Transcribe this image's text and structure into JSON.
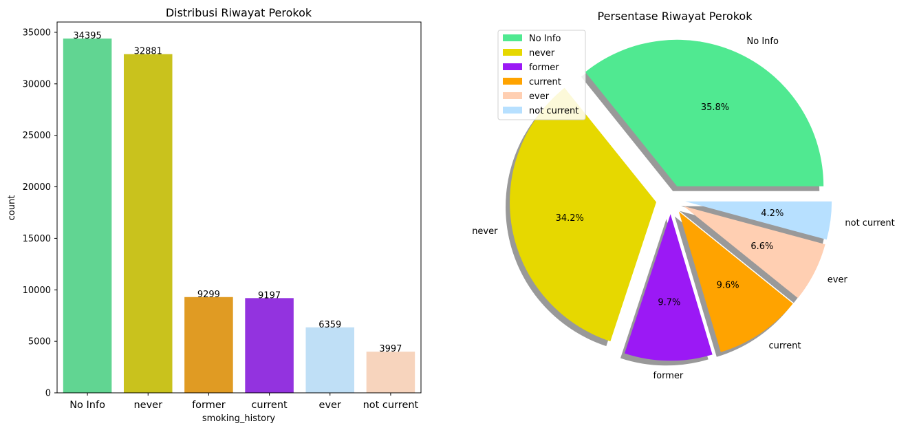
{
  "chart_data": [
    {
      "type": "bar",
      "title": "Distribusi Riwayat Perokok",
      "xlabel": "smoking_history",
      "ylabel": "count",
      "categories": [
        "No Info",
        "never",
        "former",
        "current",
        "ever",
        "not current"
      ],
      "values": [
        34395,
        32881,
        9299,
        9197,
        6359,
        3997
      ],
      "value_labels": [
        "34395",
        "32881",
        "9299",
        "9197",
        "6359",
        "3997"
      ],
      "colors": [
        "#61d592",
        "#c9c21d",
        "#e09b23",
        "#9333df",
        "#bfdff6",
        "#f7d4bd"
      ],
      "ylim": [
        0,
        36000
      ],
      "yticks": [
        0,
        5000,
        10000,
        15000,
        20000,
        25000,
        30000,
        35000
      ],
      "ytick_labels": [
        "0",
        "5000",
        "10000",
        "15000",
        "20000",
        "25000",
        "30000",
        "35000"
      ],
      "grid": false
    },
    {
      "type": "pie",
      "title": "Persentase Riwayat Perokok",
      "labels": [
        "No Info",
        "never",
        "former",
        "current",
        "ever",
        "not current"
      ],
      "values": [
        35.8,
        34.2,
        9.7,
        9.6,
        6.6,
        4.2
      ],
      "pct_labels": [
        "35.8%",
        "34.2%",
        "9.7%",
        "9.6%",
        "6.6%",
        "4.2%"
      ],
      "colors": [
        "#50e991",
        "#e6d800",
        "#9b19f5",
        "#ffa300",
        "#ffcfb2",
        "#b7e0ff"
      ],
      "explode": [
        0.1,
        0.1,
        0.1,
        0.1,
        0.1,
        0.1
      ],
      "shadow": true,
      "legend_labels": [
        "No Info",
        "never",
        "former",
        "current",
        "ever",
        "not current"
      ],
      "legend_colors": [
        "#50e991",
        "#e6d800",
        "#9b19f5",
        "#ffa300",
        "#ffcfb2",
        "#b7e0ff"
      ],
      "legend_position": "upper-left"
    }
  ]
}
